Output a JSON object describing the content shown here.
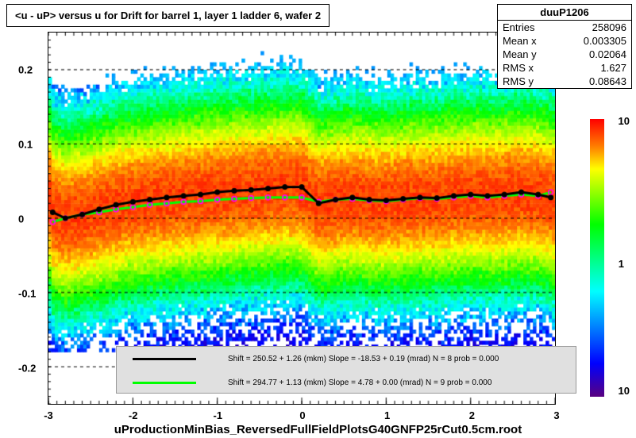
{
  "title": "<u - uP>      versus    u for Drift for barrel 1, layer 1 ladder 6, wafer 2",
  "bottom_label": "uProductionMinBias_ReversedFullFieldPlotsG40GNFP25rCut0.5cm.root",
  "stats": {
    "name": "duuP1206",
    "entries_label": "Entries",
    "entries": "258096",
    "meanx_label": "Mean x",
    "meanx": "0.003305",
    "meany_label": "Mean y",
    "meany": "0.02064",
    "rmsx_label": "RMS x",
    "rmsx": "1.627",
    "rmsy_label": "RMS y",
    "rmsy": "0.08643"
  },
  "axes": {
    "xlim": [
      -3,
      3
    ],
    "ylim": [
      -0.25,
      0.25
    ],
    "xticks": [
      -3,
      -2,
      -1,
      0,
      1,
      2,
      3
    ],
    "yticks": [
      -0.2,
      -0.1,
      0,
      0.1,
      0.2
    ]
  },
  "colorbar": {
    "type": "log",
    "labels": [
      "10",
      "1",
      "10"
    ],
    "gradient": [
      {
        "stop": 0,
        "color": "#5a0080"
      },
      {
        "stop": 0.12,
        "color": "#0000ff"
      },
      {
        "stop": 0.25,
        "color": "#0080ff"
      },
      {
        "stop": 0.38,
        "color": "#00ffff"
      },
      {
        "stop": 0.5,
        "color": "#00ff80"
      },
      {
        "stop": 0.62,
        "color": "#00ff00"
      },
      {
        "stop": 0.72,
        "color": "#80ff00"
      },
      {
        "stop": 0.82,
        "color": "#ffff00"
      },
      {
        "stop": 0.9,
        "color": "#ff8000"
      },
      {
        "stop": 1,
        "color": "#ff0000"
      }
    ]
  },
  "legend": {
    "line1": {
      "color": "#000000",
      "text": "Shift =   250.52 +  1.26 (mkm) Slope =   -18.53 + 0.19 (mrad)  N = 8 prob = 0.000"
    },
    "line2": {
      "color": "#00ff00",
      "text": "Shift =   294.77 +  1.13 (mkm) Slope =     4.78 + 0.00 (mrad)  N = 9 prob = 0.000"
    }
  },
  "heatmap": {
    "type": "2d-density-log",
    "description": "Dense horizontal band centered around y=0.02, highest density (red/orange) near y=0.02-0.04, green/yellow spreading to |y|<0.15, sparse beyond"
  },
  "profile_black": {
    "color": "#000000",
    "marker": "circle-filled",
    "x": [
      -2.95,
      -2.8,
      -2.6,
      -2.4,
      -2.2,
      -2.0,
      -1.8,
      -1.6,
      -1.4,
      -1.2,
      -1.0,
      -0.8,
      -0.6,
      -0.4,
      -0.2,
      0.0,
      0.2,
      0.4,
      0.6,
      0.8,
      1.0,
      1.2,
      1.4,
      1.6,
      1.8,
      2.0,
      2.2,
      2.4,
      2.6,
      2.8,
      2.95
    ],
    "y": [
      0.008,
      0.0,
      0.005,
      0.012,
      0.018,
      0.022,
      0.025,
      0.028,
      0.03,
      0.032,
      0.035,
      0.037,
      0.038,
      0.04,
      0.042,
      0.042,
      0.02,
      0.025,
      0.028,
      0.025,
      0.024,
      0.026,
      0.028,
      0.027,
      0.03,
      0.032,
      0.03,
      0.032,
      0.035,
      0.032,
      0.028
    ]
  },
  "profile_green": {
    "color": "#00ff00",
    "marker_color": "#ff00ff",
    "marker": "circle-open",
    "x": [
      -2.95,
      -2.8,
      -2.6,
      -2.4,
      -2.2,
      -2.0,
      -1.8,
      -1.6,
      -1.4,
      -1.2,
      -1.0,
      -0.8,
      -0.6,
      -0.4,
      -0.2,
      0.0,
      0.2,
      0.4,
      0.6,
      0.8,
      1.0,
      1.2,
      1.4,
      1.6,
      1.8,
      2.0,
      2.2,
      2.4,
      2.6,
      2.8,
      2.95
    ],
    "y": [
      -0.005,
      0.0,
      0.005,
      0.008,
      0.012,
      0.015,
      0.018,
      0.02,
      0.022,
      0.023,
      0.025,
      0.026,
      0.027,
      0.028,
      0.028,
      0.028,
      0.022,
      0.025,
      0.026,
      0.024,
      0.023,
      0.025,
      0.027,
      0.026,
      0.028,
      0.03,
      0.028,
      0.03,
      0.032,
      0.03,
      0.035
    ]
  }
}
